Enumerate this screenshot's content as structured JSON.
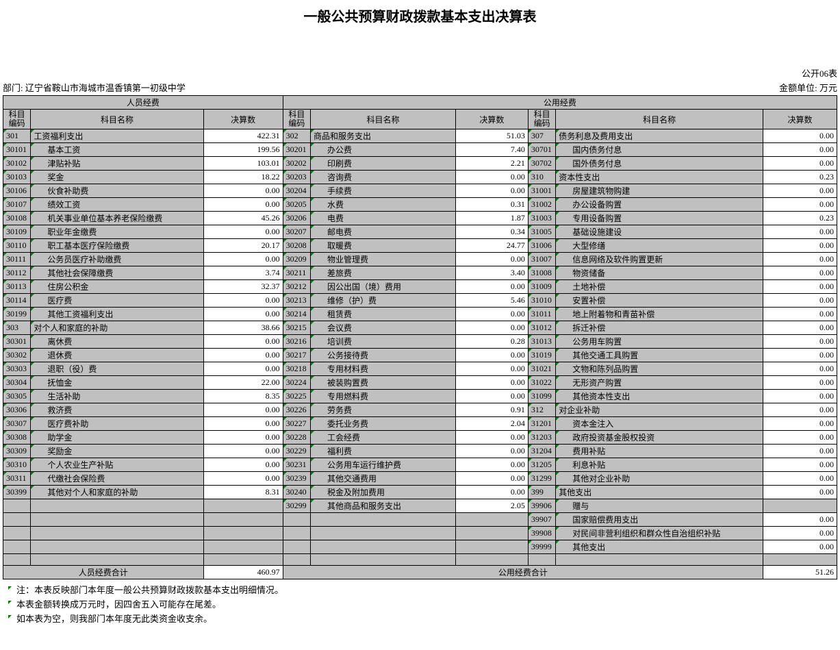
{
  "title": "一般公共预算财政拨款基本支出决算表",
  "form_no": "公开06表",
  "dept_label": "部门:",
  "dept_name": "辽宁省鞍山市海城市温香镇第一初级中学",
  "unit_label": "金额单位: 万元",
  "group_headers": {
    "left": "人员经费",
    "right": "公用经费"
  },
  "col_headers": {
    "code": "科目编码",
    "name": "科目名称",
    "value": "决算数"
  },
  "totals": {
    "left_label": "人员经费合计",
    "left_value": "460.97",
    "right_label": "公用经费合计",
    "right_value": "51.26"
  },
  "notes": [
    "注：本表反映部门本年度一般公共预算财政拨款基本支出明细情况。",
    "本表金额转换成万元时，因四舍五入可能存在尾差。",
    "如本表为空，则我部门本年度无此类资金收支余。"
  ],
  "left_rows": [
    {
      "code": "301",
      "name": "工资福利支出",
      "val": "422.31",
      "indent": 0
    },
    {
      "code": "30101",
      "name": "基本工资",
      "val": "199.56",
      "indent": 1
    },
    {
      "code": "30102",
      "name": "津贴补贴",
      "val": "103.01",
      "indent": 1
    },
    {
      "code": "30103",
      "name": "奖金",
      "val": "18.22",
      "indent": 1
    },
    {
      "code": "30106",
      "name": "伙食补助费",
      "val": "0.00",
      "indent": 1
    },
    {
      "code": "30107",
      "name": "绩效工资",
      "val": "0.00",
      "indent": 1
    },
    {
      "code": "30108",
      "name": "机关事业单位基本养老保险缴费",
      "val": "45.26",
      "indent": 1
    },
    {
      "code": "30109",
      "name": "职业年金缴费",
      "val": "0.00",
      "indent": 1
    },
    {
      "code": "30110",
      "name": "职工基本医疗保险缴费",
      "val": "20.17",
      "indent": 1
    },
    {
      "code": "30111",
      "name": "公务员医疗补助缴费",
      "val": "0.00",
      "indent": 1
    },
    {
      "code": "30112",
      "name": "其他社会保障缴费",
      "val": "3.74",
      "indent": 1
    },
    {
      "code": "30113",
      "name": "住房公积金",
      "val": "32.37",
      "indent": 1
    },
    {
      "code": "30114",
      "name": "医疗费",
      "val": "0.00",
      "indent": 1
    },
    {
      "code": "30199",
      "name": "其他工资福利支出",
      "val": "0.00",
      "indent": 1
    },
    {
      "code": "303",
      "name": "对个人和家庭的补助",
      "val": "38.66",
      "indent": 0
    },
    {
      "code": "30301",
      "name": "离休费",
      "val": "0.00",
      "indent": 1
    },
    {
      "code": "30302",
      "name": "退休费",
      "val": "0.00",
      "indent": 1
    },
    {
      "code": "30303",
      "name": "退职（役）费",
      "val": "0.00",
      "indent": 1
    },
    {
      "code": "30304",
      "name": "抚恤金",
      "val": "22.00",
      "indent": 1
    },
    {
      "code": "30305",
      "name": "生活补助",
      "val": "8.35",
      "indent": 1
    },
    {
      "code": "30306",
      "name": "救济费",
      "val": "0.00",
      "indent": 1
    },
    {
      "code": "30307",
      "name": "医疗费补助",
      "val": "0.00",
      "indent": 1
    },
    {
      "code": "30308",
      "name": "助学金",
      "val": "0.00",
      "indent": 1
    },
    {
      "code": "30309",
      "name": "奖励金",
      "val": "0.00",
      "indent": 1
    },
    {
      "code": "30310",
      "name": "个人农业生产补贴",
      "val": "0.00",
      "indent": 1
    },
    {
      "code": "30311",
      "name": "代缴社会保险费",
      "val": "0.00",
      "indent": 1
    },
    {
      "code": "30399",
      "name": "其他对个人和家庭的补助",
      "val": "8.31",
      "indent": 1
    },
    {
      "blank": true
    },
    {
      "blank": true
    },
    {
      "blank": true
    },
    {
      "blank": true
    },
    {
      "blank": true
    }
  ],
  "mid_rows": [
    {
      "code": "302",
      "name": "商品和服务支出",
      "val": "51.03",
      "indent": 0
    },
    {
      "code": "30201",
      "name": "办公费",
      "val": "7.40",
      "indent": 1
    },
    {
      "code": "30202",
      "name": "印刷费",
      "val": "2.21",
      "indent": 1
    },
    {
      "code": "30203",
      "name": "咨询费",
      "val": "0.00",
      "indent": 1
    },
    {
      "code": "30204",
      "name": "手续费",
      "val": "0.00",
      "indent": 1
    },
    {
      "code": "30205",
      "name": "水费",
      "val": "0.31",
      "indent": 1
    },
    {
      "code": "30206",
      "name": "电费",
      "val": "1.87",
      "indent": 1
    },
    {
      "code": "30207",
      "name": "邮电费",
      "val": "0.34",
      "indent": 1
    },
    {
      "code": "30208",
      "name": "取暖费",
      "val": "24.77",
      "indent": 1
    },
    {
      "code": "30209",
      "name": "物业管理费",
      "val": "0.00",
      "indent": 1
    },
    {
      "code": "30211",
      "name": "差旅费",
      "val": "3.40",
      "indent": 1
    },
    {
      "code": "30212",
      "name": "因公出国（境）费用",
      "val": "0.00",
      "indent": 1
    },
    {
      "code": "30213",
      "name": "维修（护）费",
      "val": "5.46",
      "indent": 1
    },
    {
      "code": "30214",
      "name": "租赁费",
      "val": "0.00",
      "indent": 1
    },
    {
      "code": "30215",
      "name": "会议费",
      "val": "0.00",
      "indent": 1
    },
    {
      "code": "30216",
      "name": "培训费",
      "val": "0.28",
      "indent": 1
    },
    {
      "code": "30217",
      "name": "公务接待费",
      "val": "0.00",
      "indent": 1
    },
    {
      "code": "30218",
      "name": "专用材料费",
      "val": "0.00",
      "indent": 1
    },
    {
      "code": "30224",
      "name": "被装购置费",
      "val": "0.00",
      "indent": 1
    },
    {
      "code": "30225",
      "name": "专用燃料费",
      "val": "0.00",
      "indent": 1
    },
    {
      "code": "30226",
      "name": "劳务费",
      "val": "0.91",
      "indent": 1
    },
    {
      "code": "30227",
      "name": "委托业务费",
      "val": "2.04",
      "indent": 1
    },
    {
      "code": "30228",
      "name": "工会经费",
      "val": "0.00",
      "indent": 1
    },
    {
      "code": "30229",
      "name": "福利费",
      "val": "0.00",
      "indent": 1
    },
    {
      "code": "30231",
      "name": "公务用车运行维护费",
      "val": "0.00",
      "indent": 1
    },
    {
      "code": "30239",
      "name": "其他交通费用",
      "val": "0.00",
      "indent": 1
    },
    {
      "code": "30240",
      "name": "税金及附加费用",
      "val": "0.00",
      "indent": 1
    },
    {
      "code": "30299",
      "name": "其他商品和服务支出",
      "val": "2.05",
      "indent": 1
    },
    {
      "blank": true
    },
    {
      "blank": true
    },
    {
      "blank": true
    },
    {
      "blank": true
    }
  ],
  "right_rows": [
    {
      "code": "307",
      "name": "债务利息及费用支出",
      "val": "0.00",
      "indent": 0
    },
    {
      "code": "30701",
      "name": "国内债务付息",
      "val": "0.00",
      "indent": 1
    },
    {
      "code": "30702",
      "name": "国外债务付息",
      "val": "0.00",
      "indent": 1
    },
    {
      "code": "310",
      "name": "资本性支出",
      "val": "0.23",
      "indent": 0
    },
    {
      "code": "31001",
      "name": "房屋建筑物购建",
      "val": "0.00",
      "indent": 1
    },
    {
      "code": "31002",
      "name": "办公设备购置",
      "val": "0.00",
      "indent": 1
    },
    {
      "code": "31003",
      "name": "专用设备购置",
      "val": "0.23",
      "indent": 1
    },
    {
      "code": "31005",
      "name": "基础设施建设",
      "val": "0.00",
      "indent": 1
    },
    {
      "code": "31006",
      "name": "大型修缮",
      "val": "0.00",
      "indent": 1
    },
    {
      "code": "31007",
      "name": "信息网络及软件购置更新",
      "val": "0.00",
      "indent": 1
    },
    {
      "code": "31008",
      "name": "物资储备",
      "val": "0.00",
      "indent": 1
    },
    {
      "code": "31009",
      "name": "土地补偿",
      "val": "0.00",
      "indent": 1
    },
    {
      "code": "31010",
      "name": "安置补偿",
      "val": "0.00",
      "indent": 1
    },
    {
      "code": "31011",
      "name": "地上附着物和青苗补偿",
      "val": "0.00",
      "indent": 1
    },
    {
      "code": "31012",
      "name": "拆迁补偿",
      "val": "0.00",
      "indent": 1
    },
    {
      "code": "31013",
      "name": "公务用车购置",
      "val": "0.00",
      "indent": 1
    },
    {
      "code": "31019",
      "name": "其他交通工具购置",
      "val": "0.00",
      "indent": 1
    },
    {
      "code": "31021",
      "name": "文物和陈列品购置",
      "val": "0.00",
      "indent": 1
    },
    {
      "code": "31022",
      "name": "无形资产购置",
      "val": "0.00",
      "indent": 1
    },
    {
      "code": "31099",
      "name": "其他资本性支出",
      "val": "0.00",
      "indent": 1
    },
    {
      "code": "312",
      "name": "对企业补助",
      "val": "0.00",
      "indent": 0
    },
    {
      "code": "31201",
      "name": "资本金注入",
      "val": "0.00",
      "indent": 1
    },
    {
      "code": "31203",
      "name": "政府投资基金股权投资",
      "val": "0.00",
      "indent": 1
    },
    {
      "code": "31204",
      "name": "费用补贴",
      "val": "0.00",
      "indent": 1
    },
    {
      "code": "31205",
      "name": "利息补贴",
      "val": "0.00",
      "indent": 1
    },
    {
      "code": "31299",
      "name": "其他对企业补助",
      "val": "0.00",
      "indent": 1
    },
    {
      "code": "399",
      "name": "其他支出",
      "val": "0.00",
      "indent": 0
    },
    {
      "code": "39906",
      "name": "赠与",
      "val": "",
      "indent": 1
    },
    {
      "code": "39907",
      "name": "国家赔偿费用支出",
      "val": "0.00",
      "indent": 1
    },
    {
      "code": "39908",
      "name": "对民间非营利组织和群众性自治组织补贴",
      "val": "0.00",
      "indent": 1
    },
    {
      "code": "39999",
      "name": "其他支出",
      "val": "0.00",
      "indent": 1
    },
    {
      "blank": true
    }
  ]
}
